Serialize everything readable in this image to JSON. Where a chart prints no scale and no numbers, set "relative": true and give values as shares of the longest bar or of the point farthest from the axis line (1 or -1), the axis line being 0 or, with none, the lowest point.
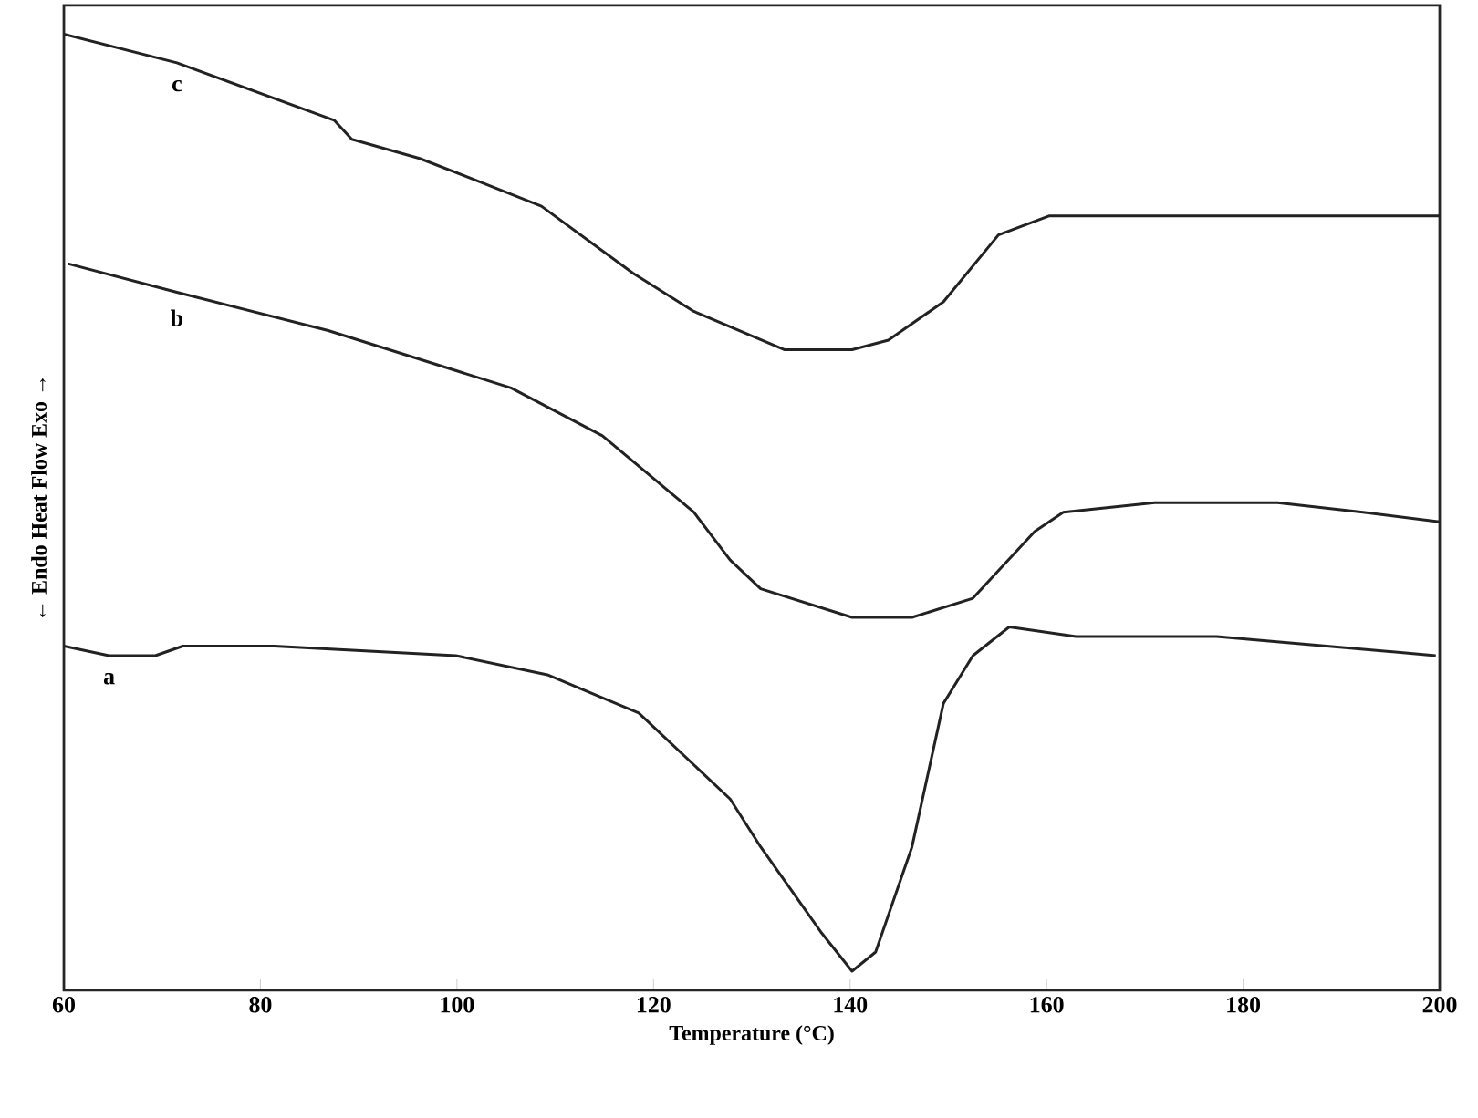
{
  "chart_data": {
    "type": "line",
    "xlabel": "Temperature (°C)",
    "ylabel": "← Endo      Heat Flow      Exo →",
    "relative": true,
    "xlim": [
      60,
      200
    ],
    "xticks": [
      60,
      80,
      100,
      120,
      140,
      160,
      180,
      200
    ],
    "grid": false,
    "legend": false,
    "marker": "none",
    "line_style": "solid",
    "series": [
      {
        "name": "c",
        "color": "#222222",
        "x": [
          60,
          71.5,
          87.5,
          89.3,
          96.2,
          101.2,
          108.6,
          117.9,
          124.1,
          133.3,
          140.2,
          143.9,
          149.5,
          155.1,
          160.3,
          174.2,
          183.5,
          194.6,
          200
        ],
        "values": [
          1.0,
          0.97,
          0.91,
          0.89,
          0.87,
          0.85,
          0.82,
          0.75,
          0.71,
          0.67,
          0.67,
          0.68,
          0.72,
          0.79,
          0.81,
          0.81,
          0.81,
          0.81,
          0.81
        ]
      },
      {
        "name": "b",
        "color": "#222222",
        "x": [
          60.4,
          71.5,
          86.9,
          105.5,
          114.8,
          124.1,
          127.8,
          130.9,
          137.1,
          140.2,
          146.3,
          152.5,
          158.8,
          161.7,
          171.0,
          183.5,
          192.2,
          200
        ],
        "values": [
          0.76,
          0.73,
          0.69,
          0.63,
          0.58,
          0.5,
          0.45,
          0.42,
          0.4,
          0.39,
          0.39,
          0.41,
          0.48,
          0.5,
          0.51,
          0.51,
          0.5,
          0.49
        ]
      },
      {
        "name": "a",
        "color": "#222222",
        "x": [
          60,
          64.6,
          69.3,
          72.1,
          81.4,
          99.9,
          109.2,
          118.5,
          127.8,
          130.9,
          137.1,
          140.2,
          142.6,
          146.3,
          149.5,
          152.5,
          156.2,
          163.0,
          177.3,
          188.5,
          199.6
        ],
        "values": [
          0.36,
          0.35,
          0.35,
          0.36,
          0.36,
          0.35,
          0.33,
          0.29,
          0.2,
          0.15,
          0.06,
          0.02,
          0.04,
          0.15,
          0.3,
          0.35,
          0.38,
          0.37,
          0.37,
          0.36,
          0.35
        ]
      }
    ]
  }
}
